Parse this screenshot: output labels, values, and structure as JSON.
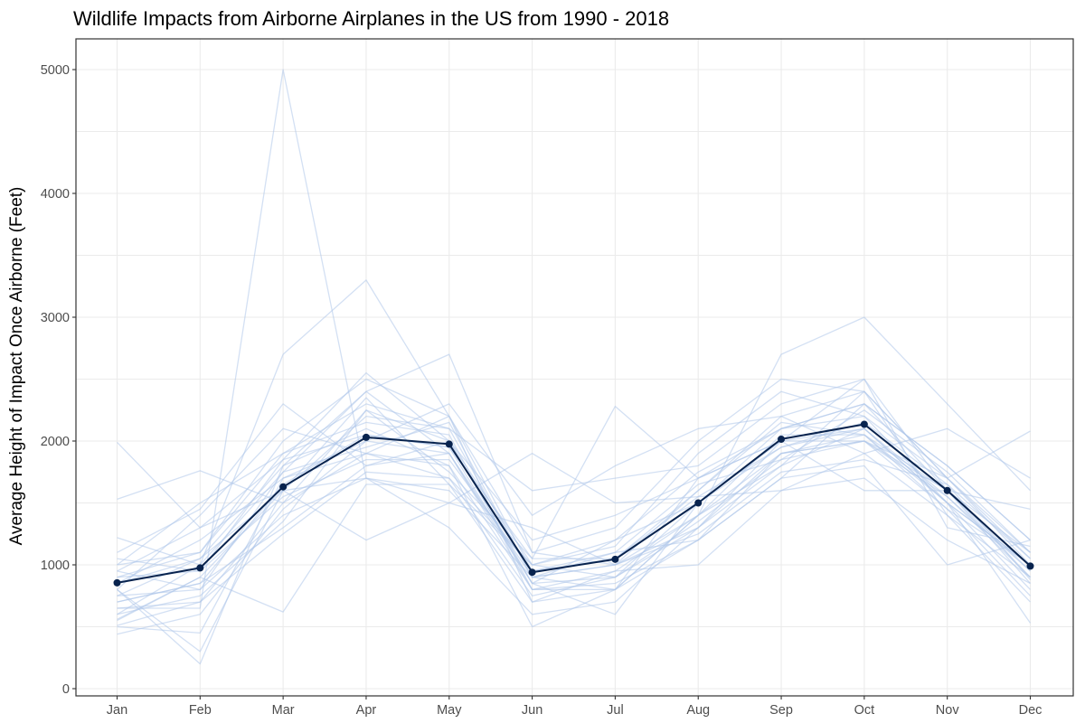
{
  "chart_data": {
    "type": "line",
    "title": "Wildlife Impacts from Airborne Airplanes in the US from 1990 - 2018",
    "xlabel": "",
    "ylabel": "Average Height of Impact Once Airborne (Feet)",
    "categories": [
      "Jan",
      "Feb",
      "Mar",
      "Apr",
      "May",
      "Jun",
      "Jul",
      "Aug",
      "Sep",
      "Oct",
      "Nov",
      "Dec"
    ],
    "ylim": [
      0,
      5200
    ],
    "yticks": [
      0,
      1000,
      2000,
      3000,
      4000,
      5000
    ],
    "grid": true,
    "legend": "none",
    "colors": {
      "average": "#08234e",
      "yearly": "#aec6ea"
    },
    "series": [
      {
        "values": [
          500,
          450,
          1700,
          2000,
          1900,
          900,
          1100,
          1200,
          1700,
          2300,
          1600,
          900
        ]
      },
      {
        "values": [
          510,
          700,
          1500,
          1900,
          1800,
          800,
          800,
          1400,
          1800,
          2100,
          1500,
          800
        ]
      },
      {
        "values": [
          560,
          900,
          620,
          1650,
          1650,
          700,
          950,
          1000,
          1600,
          1900,
          1400,
          700
        ]
      },
      {
        "values": [
          700,
          850,
          1300,
          1800,
          2000,
          1000,
          900,
          1300,
          1900,
          2000,
          1700,
          1000
        ]
      },
      {
        "values": [
          750,
          1050,
          1800,
          2400,
          2700,
          1100,
          1000,
          1600,
          2200,
          2400,
          1700,
          1100
        ]
      },
      {
        "values": [
          800,
          300,
          1600,
          2200,
          2100,
          900,
          800,
          1700,
          2100,
          2300,
          1800,
          1200
        ]
      },
      {
        "values": [
          850,
          1200,
          1700,
          1900,
          1700,
          1000,
          1200,
          1500,
          2000,
          2100,
          1500,
          1000
        ]
      },
      {
        "values": [
          900,
          1100,
          2000,
          2500,
          2200,
          1100,
          1300,
          2000,
          2500,
          2400,
          1400,
          900
        ]
      },
      {
        "values": [
          950,
          800,
          1400,
          1700,
          1600,
          900,
          1000,
          1400,
          1900,
          2000,
          1600,
          950
        ]
      },
      {
        "values": [
          1000,
          1500,
          1900,
          2300,
          2100,
          1600,
          1700,
          1800,
          2300,
          2500,
          1300,
          1150
        ]
      },
      {
        "values": [
          1100,
          1450,
          2300,
          1800,
          1900,
          800,
          850,
          1200,
          1700,
          1800,
          1000,
          1200
        ]
      },
      {
        "values": [
          1220,
          1000,
          1750,
          2400,
          1900,
          850,
          900,
          1500,
          2100,
          2200,
          1500,
          1000
        ]
      },
      {
        "values": [
          1530,
          1760,
          1500,
          2250,
          2000,
          1200,
          1400,
          1700,
          2000,
          2500,
          1600,
          850
        ]
      },
      {
        "values": [
          1990,
          1300,
          1600,
          1700,
          1500,
          1900,
          1500,
          1550,
          1600,
          1700,
          1200,
          850
        ]
      },
      {
        "values": [
          600,
          1000,
          2700,
          3300,
          2200,
          700,
          800,
          1400,
          2700,
          3000,
          2300,
          1600
        ]
      },
      {
        "values": [
          650,
          650,
          5000,
          1700,
          1300,
          600,
          700,
          1300,
          2000,
          1600,
          1600,
          1450
        ]
      },
      {
        "values": [
          550,
          900,
          1600,
          1200,
          1500,
          1300,
          1000,
          1300,
          1800,
          2400,
          1700,
          2080
        ]
      },
      {
        "values": [
          800,
          200,
          1800,
          2100,
          1800,
          500,
          800,
          1200,
          1900,
          2050,
          1500,
          530
        ]
      },
      {
        "values": [
          440,
          600,
          1450,
          2000,
          2300,
          1400,
          1800,
          2100,
          2200,
          1900,
          2100,
          1700
        ]
      },
      {
        "values": [
          700,
          850,
          1650,
          2050,
          1950,
          850,
          600,
          1500,
          1950,
          2150,
          1650,
          1050
        ]
      },
      {
        "values": [
          900,
          950,
          1550,
          1850,
          1850,
          950,
          1100,
          1650,
          1850,
          2250,
          1750,
          1100
        ]
      },
      {
        "values": [
          600,
          750,
          1350,
          2250,
          1750,
          1050,
          2280,
          1700,
          2000,
          2000,
          1550,
          950
        ]
      },
      {
        "values": [
          1000,
          1100,
          1900,
          2150,
          2050,
          800,
          950,
          1400,
          2050,
          2050,
          1450,
          1000
        ]
      },
      {
        "values": [
          750,
          800,
          1750,
          1950,
          2150,
          900,
          1000,
          1250,
          1750,
          1850,
          1650,
          880
        ]
      },
      {
        "values": [
          850,
          1050,
          1600,
          2350,
          1650,
          1000,
          1150,
          1900,
          2400,
          2200,
          1700,
          1050
        ]
      },
      {
        "values": [
          950,
          1300,
          1850,
          2050,
          1950,
          1050,
          1050,
          1550,
          1950,
          2100,
          1550,
          900
        ]
      },
      {
        "values": [
          650,
          700,
          1250,
          1750,
          1700,
          750,
          900,
          1350,
          1850,
          2000,
          1450,
          750
        ]
      },
      {
        "values": [
          800,
          1400,
          2100,
          1900,
          2200,
          950,
          1050,
          1600,
          2150,
          2050,
          1600,
          1100
        ]
      },
      {
        "values": [
          1050,
          950,
          1850,
          2550,
          2000,
          850,
          1200,
          1750,
          2100,
          2300,
          1800,
          1200
        ]
      }
    ],
    "average": {
      "values": [
        855,
        975,
        1630,
        2030,
        1975,
        940,
        1045,
        1500,
        2015,
        2135,
        1600,
        990
      ]
    }
  }
}
